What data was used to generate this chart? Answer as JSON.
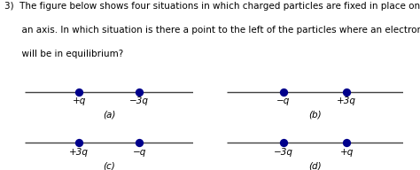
{
  "title_line1": "3)  The figure below shows four situations in which charged particles are fixed in place on",
  "title_line2": "      an axis. In which situation is there a point to the left of the particles where an electron",
  "title_line3": "      will be in equilibrium?",
  "panels": [
    {
      "label": "(a)",
      "particles": [
        {
          "charge": "+q"
        },
        {
          "charge": "−3q"
        }
      ]
    },
    {
      "label": "(b)",
      "particles": [
        {
          "charge": "−q"
        },
        {
          "charge": "+3q"
        }
      ]
    },
    {
      "label": "(c)",
      "particles": [
        {
          "charge": "+3q"
        },
        {
          "charge": "−q"
        }
      ]
    },
    {
      "label": "(d)",
      "particles": [
        {
          "charge": "−3q"
        },
        {
          "charge": "+q"
        }
      ]
    }
  ],
  "dot_color": "#00008B",
  "line_color": "#404040",
  "dot_size": 45,
  "font_size_text": 7.5,
  "font_size_charge": 7.5,
  "font_size_label": 7.5,
  "bg_color": "#ffffff",
  "figsize": [
    4.74,
    1.92
  ],
  "dpi": 100
}
